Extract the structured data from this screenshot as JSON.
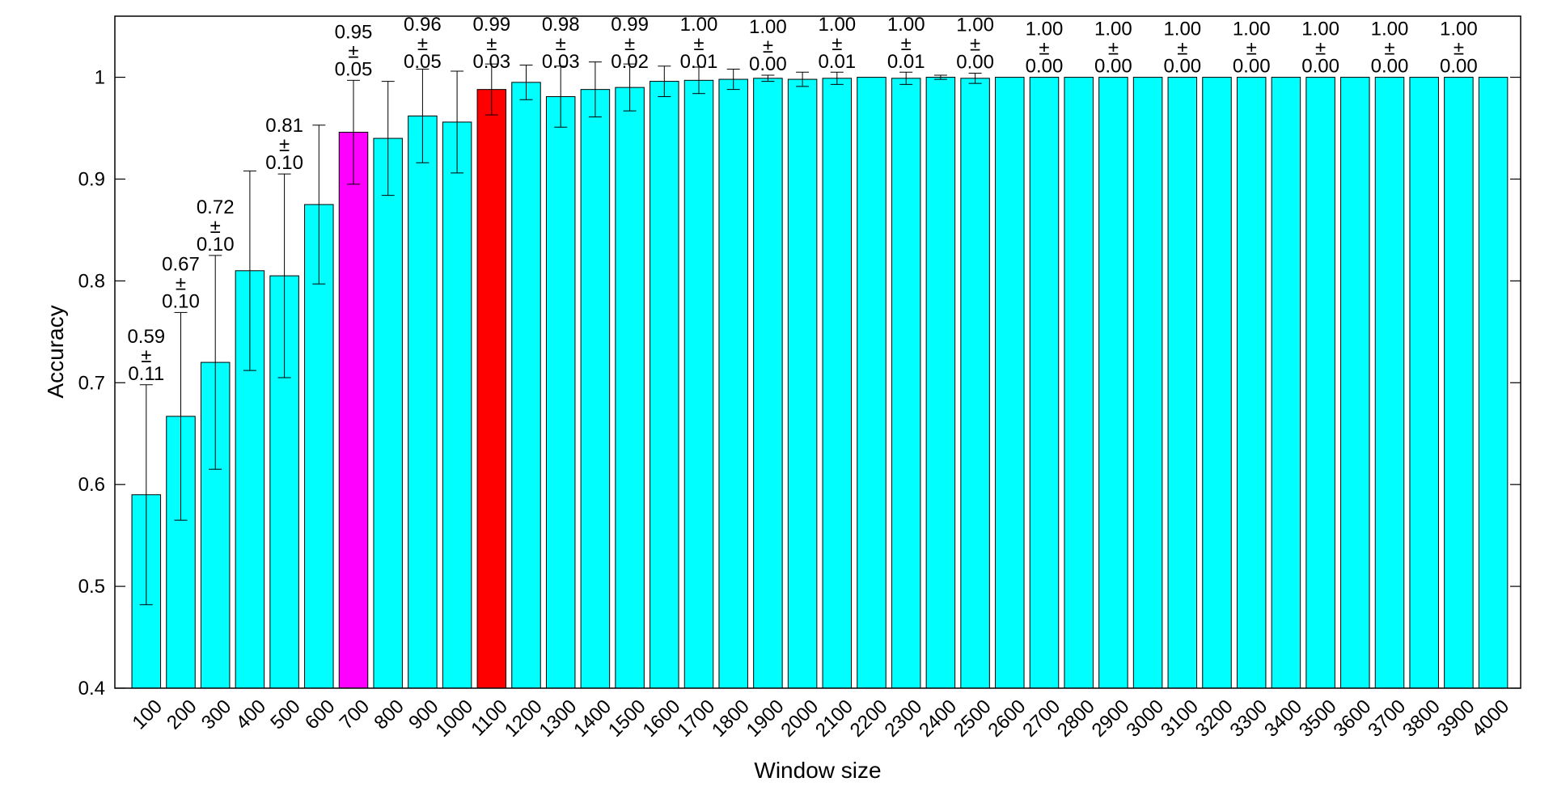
{
  "chart_data": {
    "type": "bar",
    "xlabel": "Window size",
    "ylabel": "Accuracy",
    "ylim": [
      0.4,
      1.06
    ],
    "yticks": [
      0.4,
      0.5,
      0.6,
      0.7,
      0.8,
      0.9,
      1
    ],
    "ytick_labels": [
      "0.4",
      "0.5",
      "0.6",
      "0.7",
      "0.8",
      "0.9",
      "1"
    ],
    "grid": false,
    "colors": {
      "default": "#00ffff",
      "highlight_magenta": "#ff00ff",
      "highlight_red": "#ff0000",
      "edge": "#000000"
    },
    "categories": [
      "100",
      "200",
      "300",
      "400",
      "500",
      "600",
      "700",
      "800",
      "900",
      "1000",
      "1100",
      "1200",
      "1300",
      "1400",
      "1500",
      "1600",
      "1700",
      "1800",
      "1900",
      "2000",
      "2100",
      "2200",
      "2300",
      "2400",
      "2500",
      "2600",
      "2700",
      "2800",
      "2900",
      "3000",
      "3100",
      "3200",
      "3300",
      "3400",
      "3500",
      "3600",
      "3700",
      "3800",
      "3900",
      "4000"
    ],
    "values": [
      0.59,
      0.667,
      0.72,
      0.81,
      0.805,
      0.875,
      0.946,
      0.94,
      0.962,
      0.956,
      0.988,
      0.995,
      0.981,
      0.988,
      0.99,
      0.996,
      0.997,
      0.998,
      0.999,
      0.998,
      0.999,
      1.0,
      0.999,
      1.0,
      0.999,
      1.0,
      1.0,
      1.0,
      1.0,
      1.0,
      1.0,
      1.0,
      1.0,
      1.0,
      1.0,
      1.0,
      1.0,
      1.0,
      1.0,
      1.0
    ],
    "errors": [
      0.108,
      0.102,
      0.105,
      0.098,
      0.1,
      0.078,
      0.051,
      0.056,
      0.046,
      0.05,
      0.025,
      0.017,
      0.03,
      0.027,
      0.023,
      0.015,
      0.013,
      0.01,
      0.003,
      0.007,
      0.006,
      0.0,
      0.006,
      0.002,
      0.005,
      0.0,
      0.0,
      0.0,
      0.0,
      0.0,
      0.0,
      0.0,
      0.0,
      0.0,
      0.0,
      0.0,
      0.0,
      0.0,
      0.0,
      0.0
    ],
    "bar_colors": [
      "default",
      "default",
      "default",
      "default",
      "default",
      "default",
      "highlight_magenta",
      "default",
      "default",
      "default",
      "highlight_red",
      "default",
      "default",
      "default",
      "default",
      "default",
      "default",
      "default",
      "default",
      "default",
      "default",
      "default",
      "default",
      "default",
      "default",
      "default",
      "default",
      "default",
      "default",
      "default",
      "default",
      "default",
      "default",
      "default",
      "default",
      "default",
      "default",
      "default",
      "default",
      "default"
    ],
    "annotations": [
      {
        "index": 0,
        "mean": "0.59",
        "pm": "±",
        "std": "0.11"
      },
      {
        "index": 1,
        "mean": "0.67",
        "pm": "±",
        "std": "0.10"
      },
      {
        "index": 2,
        "mean": "0.72",
        "pm": "±",
        "std": "0.10"
      },
      {
        "index": 4,
        "mean": "0.81",
        "pm": "±",
        "std": "0.10"
      },
      {
        "index": 6,
        "mean": "0.95",
        "pm": "±",
        "std": "0.05"
      },
      {
        "index": 8,
        "mean": "0.96",
        "pm": "±",
        "std": "0.05"
      },
      {
        "index": 10,
        "mean": "0.99",
        "pm": "±",
        "std": "0.03"
      },
      {
        "index": 12,
        "mean": "0.98",
        "pm": "±",
        "std": "0.03"
      },
      {
        "index": 14,
        "mean": "0.99",
        "pm": "±",
        "std": "0.02"
      },
      {
        "index": 16,
        "mean": "1.00",
        "pm": "±",
        "std": "0.01"
      },
      {
        "index": 18,
        "mean": "1.00",
        "pm": "±",
        "std": "0.00"
      },
      {
        "index": 20,
        "mean": "1.00",
        "pm": "±",
        "std": "0.01"
      },
      {
        "index": 22,
        "mean": "1.00",
        "pm": "±",
        "std": "0.01"
      },
      {
        "index": 24,
        "mean": "1.00",
        "pm": "±",
        "std": "0.00"
      },
      {
        "index": 26,
        "mean": "1.00",
        "pm": "±",
        "std": "0.00"
      },
      {
        "index": 28,
        "mean": "1.00",
        "pm": "±",
        "std": "0.00"
      },
      {
        "index": 30,
        "mean": "1.00",
        "pm": "±",
        "std": "0.00"
      },
      {
        "index": 32,
        "mean": "1.00",
        "pm": "±",
        "std": "0.00"
      },
      {
        "index": 34,
        "mean": "1.00",
        "pm": "±",
        "std": "0.00"
      },
      {
        "index": 36,
        "mean": "1.00",
        "pm": "±",
        "std": "0.00"
      },
      {
        "index": 38,
        "mean": "1.00",
        "pm": "±",
        "std": "0.00"
      }
    ]
  }
}
